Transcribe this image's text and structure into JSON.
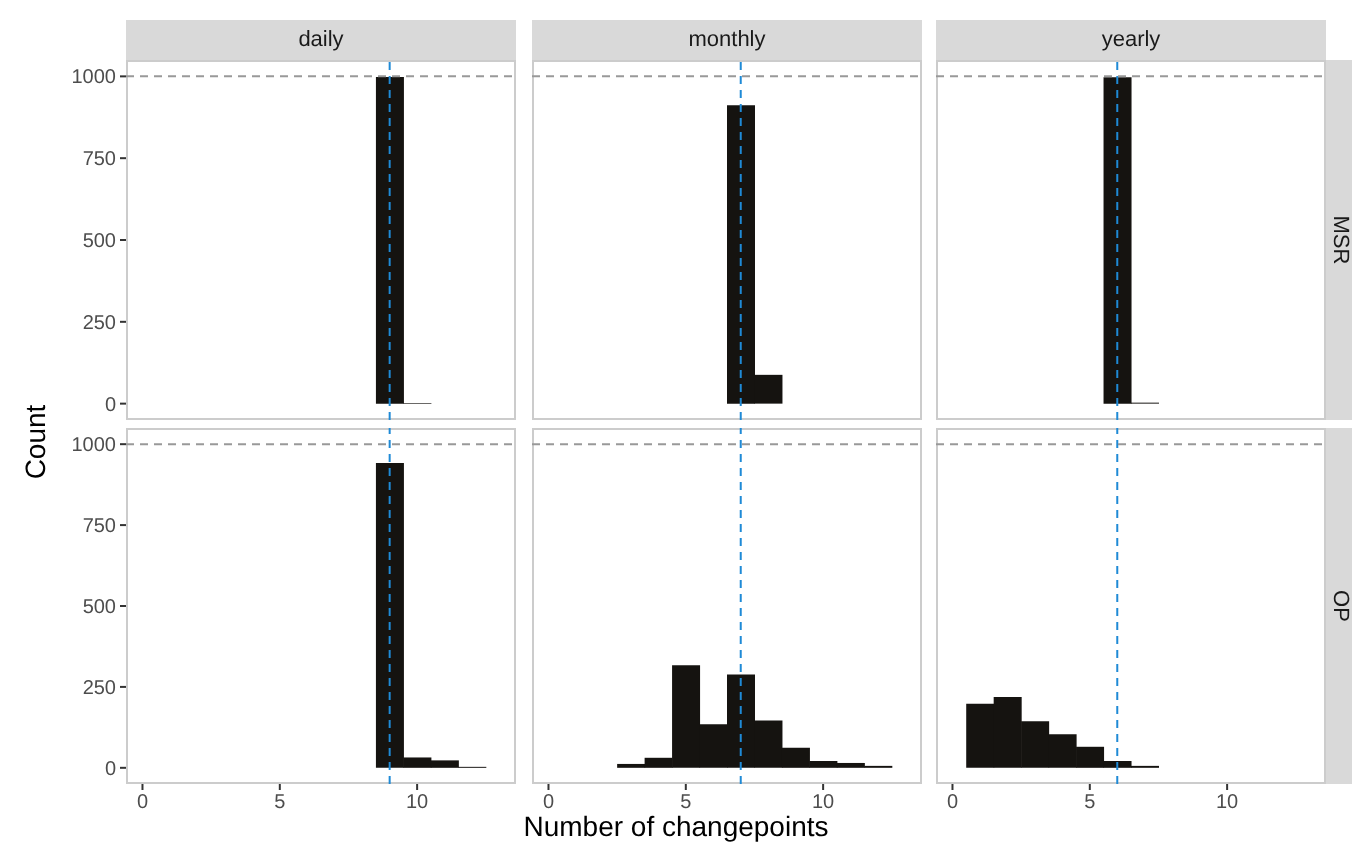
{
  "chart_data": [
    {
      "type": "histogram",
      "title": "daily",
      "ylabel": "Count",
      "bins": [
        -0.5,
        0.5,
        1.5,
        2.5,
        3.5,
        4.5,
        5.5,
        6.5,
        7.5,
        8.5,
        9.5,
        10.5,
        11.5,
        12.5,
        13.5
      ],
      "values": [
        0,
        0,
        0,
        0,
        0,
        0,
        0,
        0,
        0,
        998,
        2,
        0,
        0,
        0
      ],
      "color": "#151310",
      "xlim": [
        -0.6,
        13.6
      ],
      "ylim": [
        -50,
        1050
      ],
      "xticks": [
        0,
        5,
        10
      ],
      "yticks": [
        0,
        250,
        500,
        750,
        1000
      ],
      "tick_labels": "y",
      "ref_lines": [
        {
          "axis": "x",
          "value": 9,
          "color": "#1f8ad6",
          "line_style": "dashed"
        },
        {
          "axis": "y",
          "value": 1000,
          "color": "#999999",
          "line_style": "dashed"
        }
      ]
    },
    {
      "type": "histogram",
      "title": "monthly",
      "bins": [
        -0.5,
        0.5,
        1.5,
        2.5,
        3.5,
        4.5,
        5.5,
        6.5,
        7.5,
        8.5,
        9.5,
        10.5,
        11.5,
        12.5,
        13.5
      ],
      "values": [
        0,
        0,
        0,
        0,
        0,
        0,
        0,
        912,
        88,
        0,
        0,
        0,
        0,
        0
      ],
      "color": "#151310",
      "xlim": [
        -0.6,
        13.6
      ],
      "ylim": [
        -50,
        1050
      ],
      "xticks": [
        0,
        5,
        10
      ],
      "yticks": [
        0,
        250,
        500,
        750,
        1000
      ],
      "tick_labels": false,
      "ref_lines": [
        {
          "axis": "x",
          "value": 7,
          "color": "#1f8ad6",
          "line_style": "dashed"
        },
        {
          "axis": "y",
          "value": 1000,
          "color": "#999999",
          "line_style": "dashed"
        }
      ]
    },
    {
      "type": "histogram",
      "title": "yearly",
      "annotations": [
        "MSR"
      ],
      "bins": [
        -0.5,
        0.5,
        1.5,
        2.5,
        3.5,
        4.5,
        5.5,
        6.5,
        7.5,
        8.5,
        9.5,
        10.5,
        11.5,
        12.5,
        13.5
      ],
      "values": [
        0,
        0,
        0,
        0,
        0,
        0,
        997,
        3,
        0,
        0,
        0,
        0,
        0,
        0
      ],
      "color": "#151310",
      "xlim": [
        -0.6,
        13.6
      ],
      "ylim": [
        -50,
        1050
      ],
      "xticks": [
        0,
        5,
        10
      ],
      "yticks": [
        0,
        250,
        500,
        750,
        1000
      ],
      "tick_labels": false,
      "ref_lines": [
        {
          "axis": "x",
          "value": 6,
          "color": "#1f8ad6",
          "line_style": "dashed"
        },
        {
          "axis": "y",
          "value": 1000,
          "color": "#999999",
          "line_style": "dashed"
        }
      ]
    },
    {
      "type": "histogram",
      "bins": [
        -0.5,
        0.5,
        1.5,
        2.5,
        3.5,
        4.5,
        5.5,
        6.5,
        7.5,
        8.5,
        9.5,
        10.5,
        11.5,
        12.5,
        13.5
      ],
      "values": [
        0,
        0,
        0,
        0,
        0,
        0,
        0,
        0,
        0,
        942,
        32,
        23,
        3,
        0
      ],
      "color": "#151310",
      "xlim": [
        -0.6,
        13.6
      ],
      "ylim": [
        -50,
        1050
      ],
      "xticks": [
        0,
        5,
        10
      ],
      "yticks": [
        0,
        250,
        500,
        750,
        1000
      ],
      "ref_lines": [
        {
          "axis": "x",
          "value": 9,
          "color": "#1f8ad6",
          "line_style": "dashed"
        },
        {
          "axis": "y",
          "value": 1000,
          "color": "#999999",
          "line_style": "dashed"
        }
      ]
    },
    {
      "type": "histogram",
      "xlabel": "Number of changepoints",
      "bins": [
        -0.5,
        0.5,
        1.5,
        2.5,
        3.5,
        4.5,
        5.5,
        6.5,
        7.5,
        8.5,
        9.5,
        10.5,
        11.5,
        12.5,
        13.5
      ],
      "values": [
        0,
        0,
        0,
        12,
        31,
        317,
        135,
        288,
        146,
        62,
        21,
        15,
        6,
        0
      ],
      "color": "#151310",
      "xlim": [
        -0.6,
        13.6
      ],
      "ylim": [
        -50,
        1050
      ],
      "xticks": [
        0,
        5,
        10
      ],
      "yticks": [
        0,
        250,
        500,
        750,
        1000
      ],
      "tick_labels": "x",
      "ref_lines": [
        {
          "axis": "x",
          "value": 7,
          "color": "#1f8ad6",
          "line_style": "dashed"
        },
        {
          "axis": "y",
          "value": 1000,
          "color": "#999999",
          "line_style": "dashed"
        }
      ]
    },
    {
      "type": "histogram",
      "annotations": [
        "OP"
      ],
      "bins": [
        -0.5,
        0.5,
        1.5,
        2.5,
        3.5,
        4.5,
        5.5,
        6.5,
        7.5,
        8.5,
        9.5,
        10.5,
        11.5,
        12.5,
        13.5
      ],
      "values": [
        0,
        198,
        219,
        144,
        104,
        65,
        21,
        6,
        0,
        0,
        0,
        0,
        0,
        0
      ],
      "color": "#151310",
      "xlim": [
        -0.6,
        13.6
      ],
      "ylim": [
        -50,
        1050
      ],
      "xticks": [
        0,
        5,
        10
      ],
      "yticks": [
        0,
        250,
        500,
        750,
        1000
      ],
      "tick_labels": "x",
      "ref_lines": [
        {
          "axis": "x",
          "value": 6,
          "color": "#1f8ad6",
          "line_style": "dashed"
        },
        {
          "axis": "y",
          "value": 1000,
          "color": "#999999",
          "line_style": "dashed"
        }
      ]
    }
  ]
}
